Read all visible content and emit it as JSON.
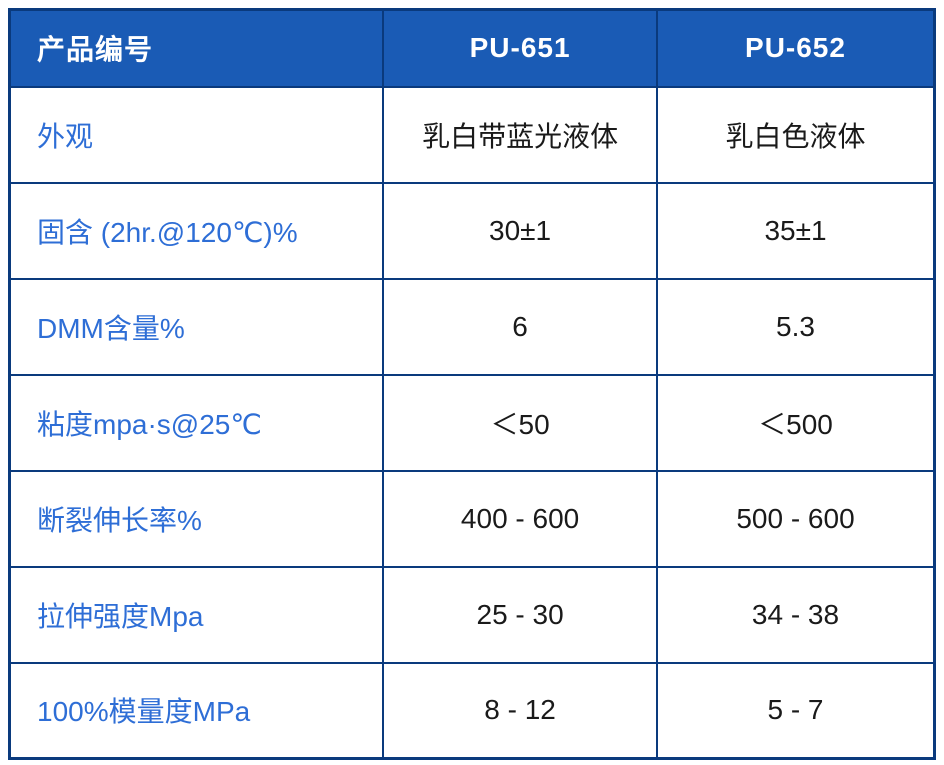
{
  "table": {
    "header": {
      "label": "产品编号",
      "columns": [
        "PU-651",
        "PU-652"
      ]
    },
    "rows": [
      {
        "label": "外观",
        "values": [
          "乳白带蓝光液体",
          "乳白色液体"
        ]
      },
      {
        "label": "固含 (2hr.@120℃)%",
        "values": [
          "30±1",
          "35±1"
        ]
      },
      {
        "label": "DMM含量%",
        "values": [
          "6",
          "5.3"
        ]
      },
      {
        "label": "粘度mpa·s@25℃",
        "values": [
          "＜50",
          "＜500"
        ]
      },
      {
        "label": "断裂伸长率%",
        "values": [
          "400 - 600",
          "500 - 600"
        ]
      },
      {
        "label": "拉伸强度Mpa",
        "values": [
          "25 - 30",
          "34 - 38"
        ]
      },
      {
        "label": "100%模量度MPa",
        "values": [
          "8 - 12",
          "5 - 7"
        ]
      }
    ],
    "colors": {
      "header_bg": "#1a5bb5",
      "border": "#0a3a7d",
      "label_text": "#2e6ed6",
      "value_text": "#1a1a1a"
    }
  }
}
